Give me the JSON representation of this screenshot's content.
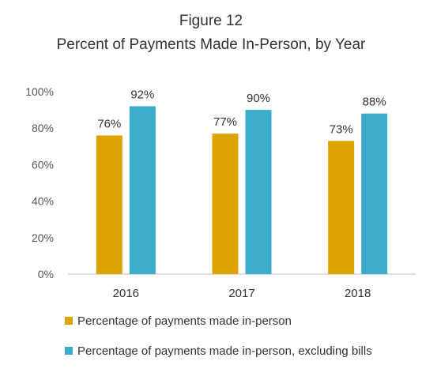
{
  "figure": {
    "label": "Figure 12",
    "title": "Percent of Payments Made In-Person, by Year"
  },
  "chart_data": {
    "type": "bar",
    "categories": [
      "2016",
      "2017",
      "2018"
    ],
    "series": [
      {
        "name": "Percentage of payments made in-person",
        "values": [
          76,
          77,
          73
        ],
        "labels": [
          "76%",
          "77%",
          "73%"
        ],
        "color": "#DDA400"
      },
      {
        "name": "Percentage of payments made in-person, excluding bills",
        "values": [
          92,
          90,
          88
        ],
        "labels": [
          "92%",
          "90%",
          "88%"
        ],
        "color": "#3CACCB"
      }
    ],
    "ylim": [
      0,
      100
    ],
    "yticks": [
      0,
      20,
      40,
      60,
      80,
      100
    ],
    "ytick_labels": [
      "0%",
      "20%",
      "40%",
      "60%",
      "80%",
      "100%"
    ],
    "grid": false,
    "legend_position": "bottom-left",
    "xlabel": "",
    "ylabel": ""
  }
}
